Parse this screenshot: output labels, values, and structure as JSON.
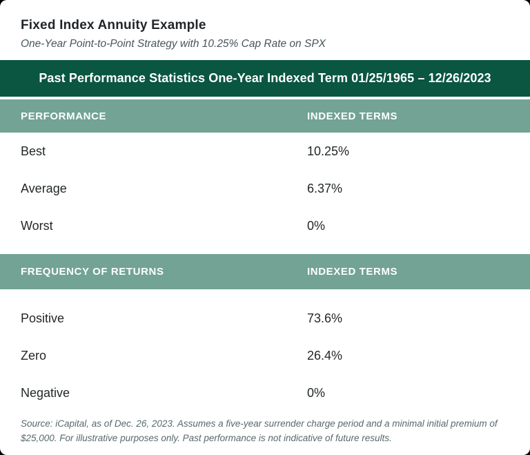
{
  "header": {
    "title": "Fixed Index Annuity Example",
    "subtitle": "One-Year Point-to-Point Strategy with 10.25% Cap Rate on SPX"
  },
  "banner": {
    "text": "Past Performance Statistics One-Year Indexed Term 01/25/1965 – 12/26/2023"
  },
  "colors": {
    "banner_green": "#0A5640",
    "header_sage": "#72A394",
    "text_dark": "#232729",
    "text_muted": "#56696D"
  },
  "sections": [
    {
      "header": {
        "col1": "PERFORMANCE",
        "col2": "INDEXED TERMS"
      },
      "rows": [
        {
          "label": "Best",
          "value": "10.25%"
        },
        {
          "label": "Average",
          "value": "6.37%"
        },
        {
          "label": "Worst",
          "value": "0%"
        }
      ]
    },
    {
      "header": {
        "col1": "FREQUENCY OF RETURNS",
        "col2": "INDEXED TERMS"
      },
      "rows": [
        {
          "label": "Positive",
          "value": "73.6%"
        },
        {
          "label": "Zero",
          "value": "26.4%"
        },
        {
          "label": "Negative",
          "value": "0%"
        }
      ]
    }
  ],
  "footer": {
    "text": "Source: iCapital, as of Dec. 26, 2023. Assumes a five-year surrender charge period and a minimal initial premium of $25,000. For illustrative purposes only. Past performance is not indicative of future results."
  }
}
